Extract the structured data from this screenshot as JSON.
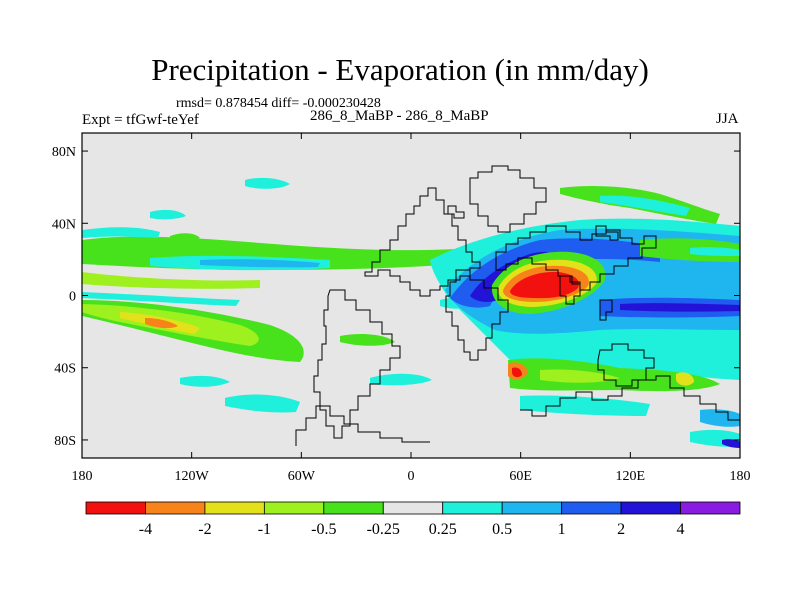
{
  "title": "Precipitation - Evaporation (in mm/day)",
  "stats": "rmsd= 0.878454 diff= -0.000230428",
  "experiment": "Expt = tfGwf-teYef",
  "case_label": "286_8_MaBP - 286_8_MaBP",
  "season": "JJA",
  "chart_data": {
    "type": "heatmap",
    "x_ticks": [
      "180",
      "120W",
      "60W",
      "0",
      "60E",
      "120E",
      "180"
    ],
    "y_ticks": [
      "80N",
      "40N",
      "0",
      "40S",
      "80S"
    ],
    "xlim": [
      -180,
      180
    ],
    "ylim": [
      -90,
      90
    ],
    "colorbar": {
      "labels": [
        "-4",
        "-2",
        "-1",
        "-0.5",
        "-0.25",
        "0.25",
        "0.5",
        "1",
        "2",
        "4"
      ],
      "colors": [
        "#f2110e",
        "#f7841a",
        "#e3e21a",
        "#9ef01f",
        "#48e21d",
        "#e6e6e6",
        "#1ff0dc",
        "#1fb6f0",
        "#1f5cf0",
        "#2213d6",
        "#8a1be0"
      ]
    }
  }
}
